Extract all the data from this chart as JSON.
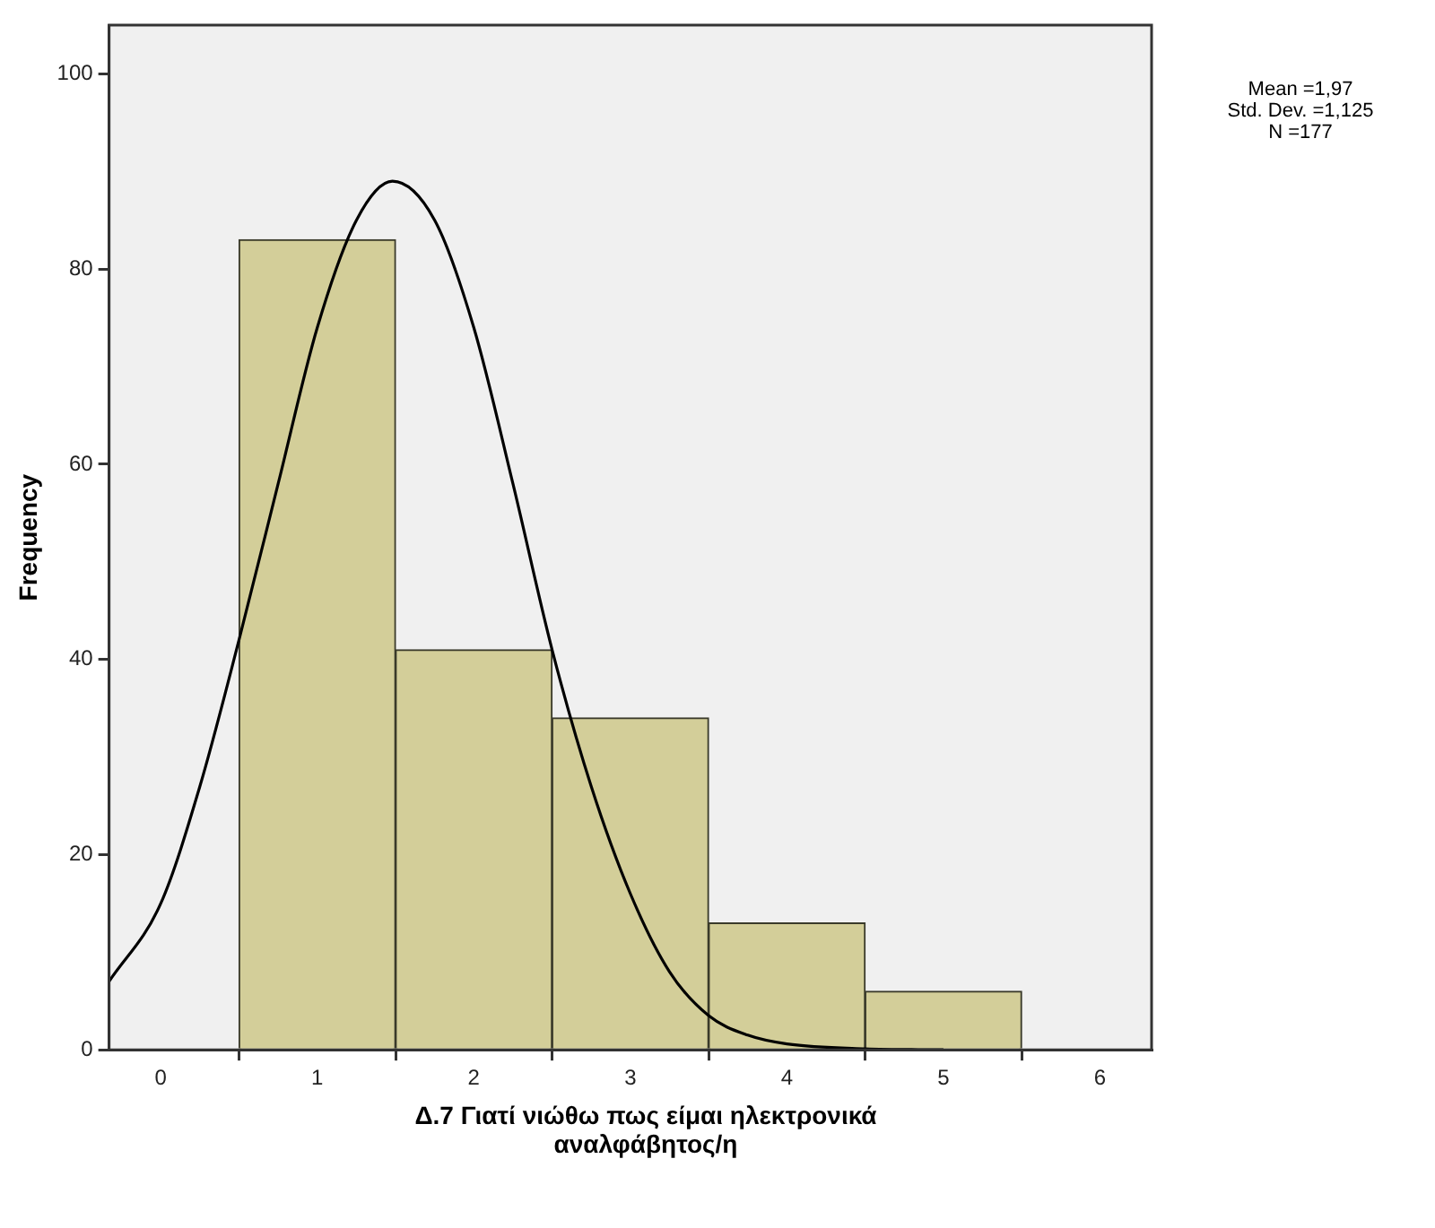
{
  "chart_data": {
    "type": "histogram",
    "xlabel": "Δ.7 Γιατί νιώθω πως είμαι ηλεκτρονικά αναλφάβητος/η",
    "ylabel": "Frequency",
    "bins": [
      0.5,
      1.5,
      2.5,
      3.5,
      4.5,
      5.5
    ],
    "values": [
      83,
      41,
      34,
      13,
      6
    ],
    "color": "#d3ce99",
    "series": [
      {
        "type": "line",
        "color": "#000000",
        "marker": "none",
        "x": [
          -0.33,
          0,
          0.25,
          0.5,
          0.75,
          1,
          1.25,
          1.48,
          1.75,
          2,
          2.25,
          2.5,
          2.75,
          3,
          3.25,
          3.5,
          3.75,
          4,
          4.5,
          5
        ],
        "values": [
          7,
          15,
          27,
          42,
          58,
          74,
          85,
          89,
          85,
          74,
          58,
          41,
          27,
          16,
          8,
          3.5,
          1.5,
          0.6,
          0.1,
          0
        ]
      }
    ],
    "xlim": [
      -0.33,
      6.33
    ],
    "xticks": [
      0,
      1,
      2,
      3,
      4,
      5,
      6
    ],
    "ylim": [
      0,
      105
    ],
    "yticks": [
      0,
      20,
      40,
      60,
      80,
      100
    ],
    "annotations": [
      "Mean =1,97\nStd. Dev. =1,125\nN =177"
    ]
  }
}
